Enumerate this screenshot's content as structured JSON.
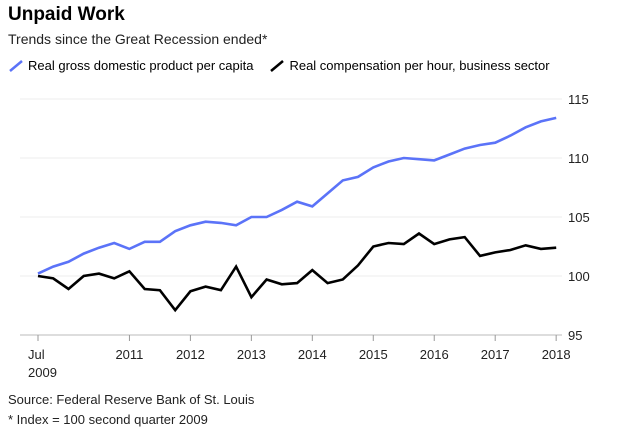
{
  "title": "Unpaid Work",
  "subtitle": "Trends since the Great Recession ended*",
  "source": "Source: Federal Reserve Bank of St. Louis",
  "footnote": "* Index = 100 second quarter 2009",
  "chart_data": {
    "type": "line",
    "title": "Unpaid Work",
    "subtitle": "Trends since the Great Recession ended*",
    "ylim": [
      95,
      115
    ],
    "yticks": [
      95,
      100,
      105,
      110,
      115
    ],
    "y_axis_side": "right",
    "grid": "horizontal",
    "legend_placement": "top-left",
    "xtick_labels": [
      {
        "q": "2009-Q3",
        "label": "Jul",
        "sublabel": "2009"
      },
      {
        "q": "2011-Q1",
        "label": "2011"
      },
      {
        "q": "2012-Q1",
        "label": "2012"
      },
      {
        "q": "2013-Q1",
        "label": "2013"
      },
      {
        "q": "2014-Q1",
        "label": "2014"
      },
      {
        "q": "2015-Q1",
        "label": "2015"
      },
      {
        "q": "2016-Q1",
        "label": "2016"
      },
      {
        "q": "2017-Q1",
        "label": "2017"
      },
      {
        "q": "2018-Q1",
        "label": "2018"
      }
    ],
    "x": [
      "2009-Q3",
      "2009-Q4",
      "2010-Q1",
      "2010-Q2",
      "2010-Q3",
      "2010-Q4",
      "2011-Q1",
      "2011-Q2",
      "2011-Q3",
      "2011-Q4",
      "2012-Q1",
      "2012-Q2",
      "2012-Q3",
      "2012-Q4",
      "2013-Q1",
      "2013-Q2",
      "2013-Q3",
      "2013-Q4",
      "2014-Q1",
      "2014-Q2",
      "2014-Q3",
      "2014-Q4",
      "2015-Q1",
      "2015-Q2",
      "2015-Q3",
      "2015-Q4",
      "2016-Q1",
      "2016-Q2",
      "2016-Q3",
      "2016-Q4",
      "2017-Q1",
      "2017-Q2",
      "2017-Q3",
      "2017-Q4",
      "2018-Q1"
    ],
    "series": [
      {
        "name": "Real gross domestic product per capita",
        "color": "#5b73f8",
        "values": [
          100.2,
          100.8,
          101.2,
          101.9,
          102.4,
          102.8,
          102.3,
          102.9,
          102.9,
          103.8,
          104.3,
          104.6,
          104.5,
          104.3,
          105.0,
          105.0,
          105.6,
          106.3,
          105.9,
          107.0,
          108.1,
          108.4,
          109.2,
          109.7,
          110.0,
          109.9,
          109.8,
          110.3,
          110.8,
          111.1,
          111.3,
          111.9,
          112.6,
          113.1,
          113.4
        ]
      },
      {
        "name": "Real compensation per hour, business sector",
        "color": "#000000",
        "values": [
          100.0,
          99.8,
          98.9,
          100.0,
          100.2,
          99.8,
          100.4,
          98.9,
          98.8,
          97.1,
          98.7,
          99.1,
          98.8,
          100.8,
          98.2,
          99.7,
          99.3,
          99.4,
          100.5,
          99.4,
          99.7,
          100.9,
          102.5,
          102.8,
          102.7,
          103.6,
          102.7,
          103.1,
          103.3,
          101.7,
          102.0,
          102.2,
          102.6,
          102.3,
          102.4
        ]
      }
    ]
  }
}
